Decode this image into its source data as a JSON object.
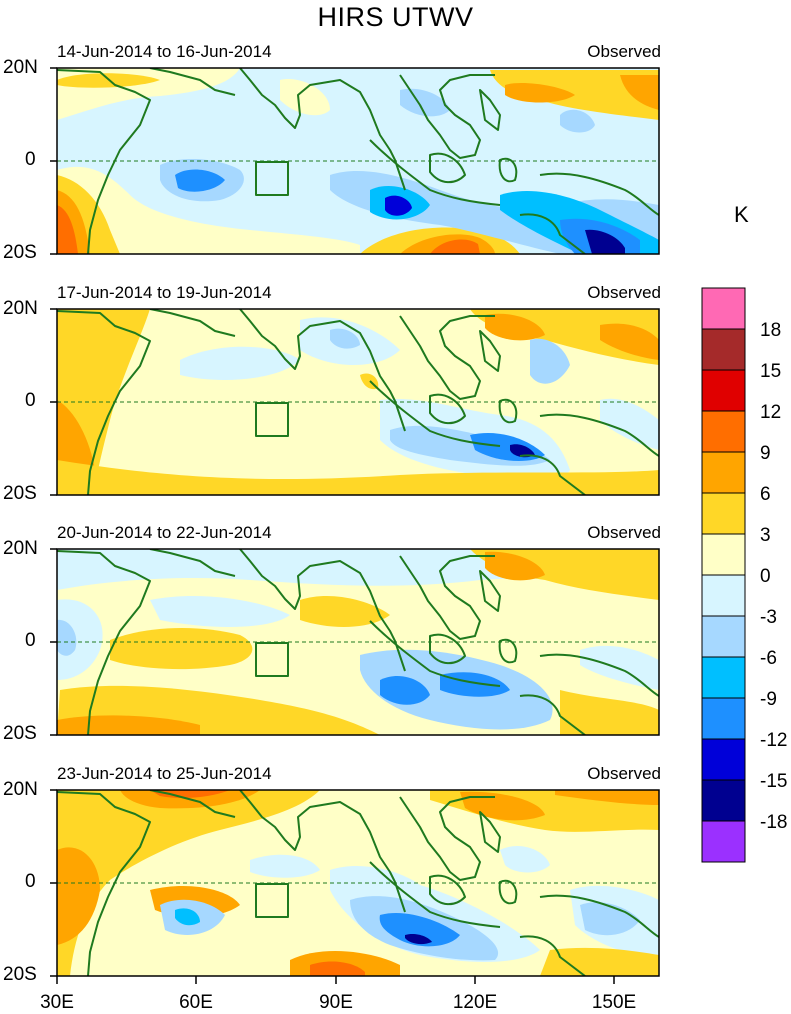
{
  "title": "HIRS UTWV",
  "panels": [
    {
      "date_range": "14-Jun-2014 to 16-Jun-2014",
      "label": "Observed"
    },
    {
      "date_range": "17-Jun-2014 to 19-Jun-2014",
      "label": "Observed"
    },
    {
      "date_range": "20-Jun-2014 to 22-Jun-2014",
      "label": "Observed"
    },
    {
      "date_range": "23-Jun-2014 to 25-Jun-2014",
      "label": "Observed"
    }
  ],
  "lat_labels": [
    "20N",
    "0",
    "20S"
  ],
  "lon_labels": [
    "30E",
    "60E",
    "90E",
    "120E",
    "150E"
  ],
  "colorbar": {
    "unit": "K",
    "colors": [
      "#ff69b4",
      "#a52a2a",
      "#e00000",
      "#ff6e00",
      "#ffa500",
      "#ffd727",
      "#ffffc7",
      "#d7f5ff",
      "#a6d8ff",
      "#00bfff",
      "#1e90ff",
      "#0000d9",
      "#000090",
      "#9b30ff"
    ],
    "labels": [
      "18",
      "15",
      "12",
      "9",
      "6",
      "3",
      "0",
      "-3",
      "-6",
      "-9",
      "-12",
      "-15",
      "-18"
    ]
  }
}
